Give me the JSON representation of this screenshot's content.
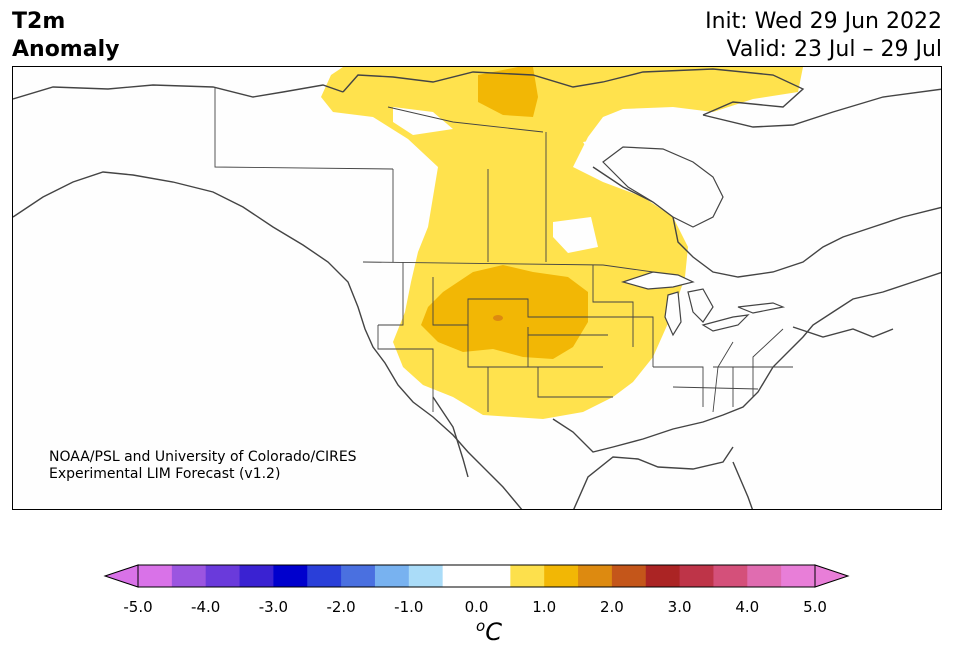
{
  "title": {
    "left_line1": "T2m",
    "left_line2": "Anomaly",
    "init": "Init: Wed 29 Jun 2022",
    "valid": "Valid: 23 Jul – 29 Jul"
  },
  "credit": {
    "line1": "NOAA/PSL and University of Colorado/CIRES",
    "line2": "Experimental LIM Forecast (v1.2)"
  },
  "colorbar": {
    "unit_sup": "o",
    "unit": "C",
    "ticks": [
      "-5.0",
      "-4.0",
      "-3.0",
      "-2.0",
      "-1.0",
      "0.0",
      "1.0",
      "2.0",
      "3.0",
      "4.0",
      "5.0"
    ],
    "colors": [
      "#d972e8",
      "#9b55e0",
      "#6a3adb",
      "#3a22d2",
      "#0000cd",
      "#2a3fd9",
      "#4a70e0",
      "#78b2f0",
      "#aadcf8",
      "#ffffff",
      "#ffffff",
      "#fde04c",
      "#f2b705",
      "#dd8a10",
      "#c4561a",
      "#ab2424",
      "#be3448",
      "#d4507a",
      "#e06cb0",
      "#e87ed8"
    ],
    "under_color": "#d972e8",
    "over_color": "#e87ed8"
  },
  "map": {
    "anomaly_levels": [
      "0.5-1.0",
      "1.0-1.5",
      "1.5-2.0"
    ],
    "level_colors": [
      "#ffe24d",
      "#f2b705",
      "#dd8a10"
    ]
  }
}
